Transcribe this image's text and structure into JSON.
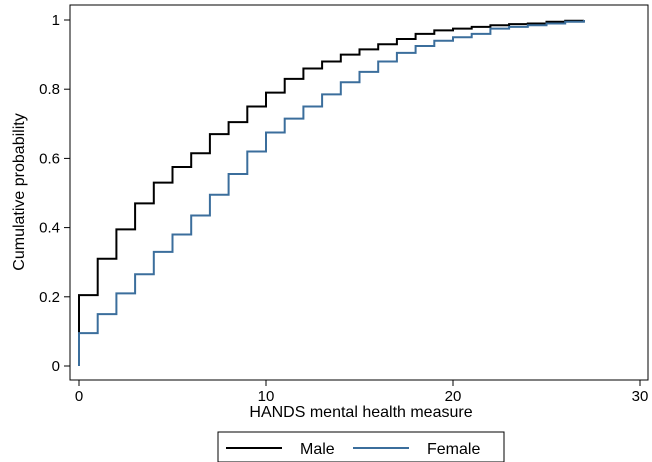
{
  "chart_data": {
    "type": "line",
    "step": true,
    "title": "",
    "xlabel": "HANDS mental  health measure",
    "ylabel": "Cumulative probability",
    "xlim": [
      0,
      30
    ],
    "ylim": [
      0,
      1
    ],
    "x_ticks": [
      "0",
      "10",
      "20",
      "30"
    ],
    "y_ticks": [
      "0",
      "0.2",
      "0.4",
      "0.6",
      "0.8",
      "1"
    ],
    "x_tick_values": [
      0,
      10,
      20,
      30
    ],
    "y_tick_values": [
      0,
      0.2,
      0.4,
      0.6,
      0.8,
      1
    ],
    "grid": false,
    "legend_position": "bottom",
    "series": [
      {
        "name": "Male",
        "color": "#000000",
        "x": [
          0,
          1,
          2,
          3,
          4,
          5,
          6,
          7,
          8,
          9,
          10,
          11,
          12,
          13,
          14,
          15,
          16,
          17,
          18,
          19,
          20,
          21,
          22,
          23,
          24,
          25,
          26,
          27
        ],
        "y": [
          0.205,
          0.31,
          0.395,
          0.47,
          0.53,
          0.575,
          0.615,
          0.67,
          0.705,
          0.75,
          0.79,
          0.83,
          0.86,
          0.88,
          0.9,
          0.915,
          0.93,
          0.945,
          0.96,
          0.97,
          0.975,
          0.98,
          0.985,
          0.988,
          0.99,
          0.995,
          0.998,
          1.0
        ]
      },
      {
        "name": "Female",
        "color": "#3b6e9c",
        "x": [
          0,
          1,
          2,
          3,
          4,
          5,
          6,
          7,
          8,
          9,
          10,
          11,
          12,
          13,
          14,
          15,
          16,
          17,
          18,
          19,
          20,
          21,
          22,
          23,
          24,
          25,
          26,
          27
        ],
        "y": [
          0.095,
          0.15,
          0.21,
          0.265,
          0.33,
          0.38,
          0.435,
          0.495,
          0.555,
          0.62,
          0.675,
          0.715,
          0.75,
          0.785,
          0.82,
          0.85,
          0.88,
          0.905,
          0.925,
          0.94,
          0.95,
          0.96,
          0.975,
          0.98,
          0.985,
          0.99,
          0.995,
          1.0
        ]
      }
    ]
  }
}
